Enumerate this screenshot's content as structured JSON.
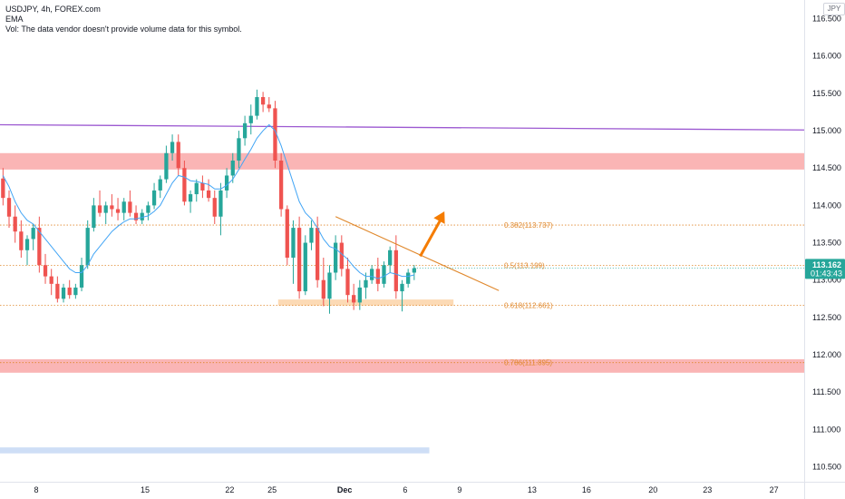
{
  "legend": {
    "symbol_line": "USDJPY, 4h, FOREX.com",
    "ema_label": "EMA",
    "vol_line": "Vol: The data vendor doesn't provide volume data for this symbol."
  },
  "currency_badge": "JPY",
  "current_price": {
    "price": "113.162",
    "countdown": "01:43:43",
    "value": 113.162
  },
  "colors": {
    "up": "#26a69a",
    "down": "#ef5350",
    "ema": "#42a5f5",
    "fib": "#e0882c",
    "resistance_line": "#9c59d1",
    "zone_red": "#f9a8a8",
    "zone_orange": "#fbd3a8",
    "zone_blue": "#c5d8f5",
    "arrow": "#f57c00"
  },
  "chart_data": {
    "type": "candlestick",
    "y_axis": {
      "min": 110.3,
      "max": 116.75,
      "ticks": [
        "116.500",
        "116.000",
        "115.500",
        "115.000",
        "114.500",
        "114.000",
        "113.500",
        "113.000",
        "112.500",
        "112.000",
        "111.500",
        "111.000",
        "110.500"
      ]
    },
    "x_axis": {
      "ticks": [
        {
          "label": "8",
          "index": 6
        },
        {
          "label": "15",
          "index": 24
        },
        {
          "label": "22",
          "index": 38
        },
        {
          "label": "25",
          "index": 45
        },
        {
          "label": "Dec",
          "index": 57
        },
        {
          "label": "6",
          "index": 67
        },
        {
          "label": "9",
          "index": 76
        },
        {
          "label": "13",
          "index": 88
        },
        {
          "label": "16",
          "index": 97
        },
        {
          "label": "20",
          "index": 108
        },
        {
          "label": "23",
          "index": 117
        },
        {
          "label": "27",
          "index": 128
        }
      ],
      "total_slots": 133
    },
    "fib_levels": [
      {
        "label": "0.382(113.737)",
        "value": 113.737
      },
      {
        "label": "0.5(113.199)",
        "value": 113.199
      },
      {
        "label": "0.618(112.661)",
        "value": 112.661
      },
      {
        "label": "0.786(111.895)",
        "value": 111.895
      }
    ],
    "zones": [
      {
        "name": "resistance-zone",
        "from": 114.48,
        "to": 114.7,
        "color": "red"
      },
      {
        "name": "support-zone",
        "from": 111.76,
        "to": 111.94,
        "color": "red"
      },
      {
        "name": "demand-box",
        "from": 112.66,
        "to": 112.74,
        "color": "orange",
        "x_from": 46,
        "x_to": 75
      },
      {
        "name": "projection-box",
        "from": 110.68,
        "to": 110.76,
        "color": "blue",
        "x_from": 0,
        "x_to": 71
      }
    ],
    "resistance_line": {
      "x1": 0,
      "y1": 115.08,
      "x2": 133,
      "y2": 115.01
    },
    "trend_line": {
      "x1": 55,
      "y1": 113.85,
      "x2": 82,
      "y2": 112.86
    },
    "arrow": {
      "x1": 69,
      "y1": 113.32,
      "x2": 73,
      "y2": 113.92
    },
    "candles": [
      [
        114.36,
        114.5,
        114.0,
        114.1
      ],
      [
        114.1,
        114.2,
        113.7,
        113.85
      ],
      [
        113.85,
        114.0,
        113.5,
        113.65
      ],
      [
        113.65,
        113.8,
        113.3,
        113.4
      ],
      [
        113.4,
        113.6,
        113.2,
        113.55
      ],
      [
        113.55,
        113.75,
        113.4,
        113.7
      ],
      [
        113.7,
        113.85,
        113.1,
        113.2
      ],
      [
        113.2,
        113.35,
        112.95,
        113.05
      ],
      [
        113.05,
        113.15,
        112.8,
        112.95
      ],
      [
        112.95,
        113.05,
        112.7,
        112.75
      ],
      [
        112.75,
        112.95,
        112.7,
        112.9
      ],
      [
        112.9,
        113.0,
        112.75,
        112.8
      ],
      [
        112.8,
        112.95,
        112.75,
        112.9
      ],
      [
        112.9,
        113.3,
        112.85,
        113.2
      ],
      [
        113.2,
        113.8,
        113.15,
        113.7
      ],
      [
        113.7,
        114.1,
        113.65,
        114.0
      ],
      [
        114.0,
        114.2,
        113.85,
        113.9
      ],
      [
        113.9,
        114.05,
        113.75,
        114.0
      ],
      [
        114.0,
        114.15,
        113.85,
        113.95
      ],
      [
        113.95,
        114.1,
        113.8,
        113.9
      ],
      [
        113.9,
        114.1,
        113.8,
        114.05
      ],
      [
        114.05,
        114.2,
        113.85,
        113.9
      ],
      [
        113.9,
        114.0,
        113.75,
        113.8
      ],
      [
        113.8,
        113.95,
        113.75,
        113.9
      ],
      [
        113.9,
        114.05,
        113.8,
        114.0
      ],
      [
        114.0,
        114.3,
        113.95,
        114.2
      ],
      [
        114.2,
        114.4,
        114.1,
        114.35
      ],
      [
        114.35,
        114.8,
        114.3,
        114.7
      ],
      [
        114.7,
        114.95,
        114.6,
        114.85
      ],
      [
        114.85,
        114.95,
        114.4,
        114.5
      ],
      [
        114.5,
        114.6,
        114.0,
        114.05
      ],
      [
        114.05,
        114.2,
        113.9,
        114.15
      ],
      [
        114.15,
        114.35,
        114.05,
        114.3
      ],
      [
        114.3,
        114.4,
        114.1,
        114.2
      ],
      [
        114.2,
        114.35,
        114.05,
        114.1
      ],
      [
        114.1,
        114.2,
        113.75,
        113.85
      ],
      [
        113.85,
        114.3,
        113.6,
        114.2
      ],
      [
        114.2,
        114.5,
        114.1,
        114.4
      ],
      [
        114.4,
        114.7,
        114.3,
        114.6
      ],
      [
        114.6,
        115.0,
        114.5,
        114.9
      ],
      [
        114.9,
        115.2,
        114.8,
        115.1
      ],
      [
        115.1,
        115.35,
        114.95,
        115.2
      ],
      [
        115.2,
        115.55,
        115.15,
        115.45
      ],
      [
        115.45,
        115.52,
        115.25,
        115.35
      ],
      [
        115.35,
        115.45,
        115.25,
        115.3
      ],
      [
        115.3,
        115.4,
        114.5,
        114.6
      ],
      [
        114.6,
        114.7,
        113.85,
        113.95
      ],
      [
        113.95,
        114.0,
        113.2,
        113.3
      ],
      [
        113.3,
        113.8,
        112.95,
        113.7
      ],
      [
        113.7,
        113.85,
        112.75,
        112.85
      ],
      [
        112.85,
        113.6,
        112.8,
        113.5
      ],
      [
        113.5,
        113.8,
        113.4,
        113.7
      ],
      [
        113.7,
        113.85,
        112.9,
        113.0
      ],
      [
        113.0,
        113.3,
        112.65,
        112.75
      ],
      [
        112.75,
        113.2,
        112.55,
        113.1
      ],
      [
        113.1,
        113.6,
        113.0,
        113.5
      ],
      [
        113.5,
        113.6,
        113.05,
        113.15
      ],
      [
        113.15,
        113.3,
        112.7,
        112.8
      ],
      [
        112.8,
        112.95,
        112.6,
        112.7
      ],
      [
        112.7,
        113.0,
        112.6,
        112.9
      ],
      [
        112.9,
        113.1,
        112.75,
        113.0
      ],
      [
        113.0,
        113.2,
        112.95,
        113.15
      ],
      [
        113.15,
        113.3,
        112.85,
        112.95
      ],
      [
        112.95,
        113.25,
        112.9,
        113.2
      ],
      [
        113.2,
        113.45,
        113.1,
        113.4
      ],
      [
        113.4,
        113.6,
        112.75,
        112.85
      ],
      [
        112.85,
        113.0,
        112.58,
        112.95
      ],
      [
        112.95,
        113.15,
        112.9,
        113.1
      ],
      [
        113.1,
        113.2,
        113.0,
        113.16
      ]
    ],
    "ema": [
      114.4,
      114.25,
      114.05,
      113.9,
      113.8,
      113.75,
      113.65,
      113.55,
      113.45,
      113.35,
      113.25,
      113.15,
      113.1,
      113.1,
      113.2,
      113.35,
      113.45,
      113.55,
      113.65,
      113.72,
      113.78,
      113.82,
      113.82,
      113.84,
      113.86,
      113.92,
      114.0,
      114.15,
      114.3,
      114.4,
      114.38,
      114.33,
      114.32,
      114.3,
      114.28,
      114.22,
      114.22,
      114.27,
      114.35,
      114.48,
      114.62,
      114.75,
      114.9,
      115.0,
      115.08,
      115.0,
      114.8,
      114.55,
      114.3,
      114.05,
      113.9,
      113.82,
      113.7,
      113.55,
      113.45,
      113.42,
      113.35,
      113.28,
      113.18,
      113.1,
      113.05,
      113.05,
      113.02,
      113.05,
      113.1,
      113.08,
      113.05,
      113.05,
      113.07
    ]
  }
}
